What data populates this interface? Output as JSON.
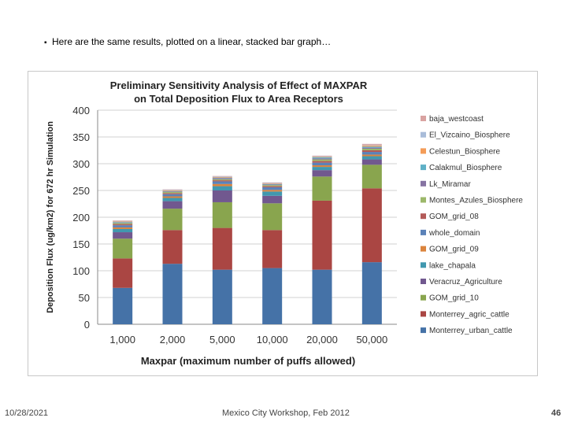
{
  "slide": {
    "bullet": "Here are the same results, plotted on a linear, stacked bar graph…",
    "footer_date": "10/28/2021",
    "footer_center": "Mexico City Workshop, Feb 2012",
    "page_number": "46"
  },
  "chart_data": {
    "type": "bar",
    "stacked": true,
    "title": [
      "Preliminary Sensitivity Analysis of Effect of MAXPAR",
      "on Total Deposition Flux to Area Receptors"
    ],
    "xlabel": "Maxpar (maximum number of puffs allowed)",
    "ylabel": "Deposition Flux (ug/km2) for 672 hr Simulation",
    "ylim": [
      0,
      400
    ],
    "yticks": [
      0,
      50,
      100,
      150,
      200,
      250,
      300,
      350,
      400
    ],
    "categories": [
      "1,000",
      "2,000",
      "5,000",
      "10,000",
      "20,000",
      "50,000"
    ],
    "legend_position": "right",
    "series": [
      {
        "name": "Monterrey_urban_cattle",
        "color": "#4572a7",
        "values": [
          68,
          113,
          102,
          105,
          102,
          116
        ]
      },
      {
        "name": "Monterrey_agric_cattle",
        "color": "#aa4643",
        "values": [
          55,
          63,
          78,
          71,
          129,
          138
        ]
      },
      {
        "name": "GOM_grid_10",
        "color": "#89a54e",
        "values": [
          37,
          40,
          48,
          50,
          45,
          44
        ]
      },
      {
        "name": "Veracruz_Agriculture",
        "color": "#71588f",
        "values": [
          12,
          14,
          22,
          14,
          12,
          10
        ]
      },
      {
        "name": "lake_chapala",
        "color": "#4198af",
        "values": [
          6,
          6,
          8,
          8,
          6,
          6
        ]
      },
      {
        "name": "GOM_grid_09",
        "color": "#db843d",
        "values": [
          3,
          3,
          4,
          3,
          3,
          3
        ]
      },
      {
        "name": "whole_domain",
        "color": "#5b82b8",
        "values": [
          4,
          4,
          5,
          5,
          5,
          5
        ]
      },
      {
        "name": "GOM_grid_08",
        "color": "#b35a58",
        "values": [
          2,
          2,
          2,
          2,
          3,
          3
        ]
      },
      {
        "name": "Montes_Azules_Biosphere",
        "color": "#9cb86a",
        "values": [
          2,
          2,
          2,
          2,
          3,
          3
        ]
      },
      {
        "name": "Lk_Miramar",
        "color": "#8673a2",
        "values": [
          1,
          1,
          2,
          1,
          2,
          2
        ]
      },
      {
        "name": "Calakmul_Biosphere",
        "color": "#5fb0c6",
        "values": [
          1,
          1,
          1,
          1,
          2,
          2
        ]
      },
      {
        "name": "Celestun_Biosphere",
        "color": "#f49c58",
        "values": [
          1,
          1,
          1,
          1,
          1,
          2
        ]
      },
      {
        "name": "El_Vizcaino_Biosphere",
        "color": "#a9bcd9",
        "values": [
          1,
          1,
          1,
          1,
          1,
          1
        ]
      },
      {
        "name": "baja_westcoast",
        "color": "#d9a3a1",
        "values": [
          1,
          1,
          1,
          1,
          1,
          2
        ]
      }
    ]
  }
}
